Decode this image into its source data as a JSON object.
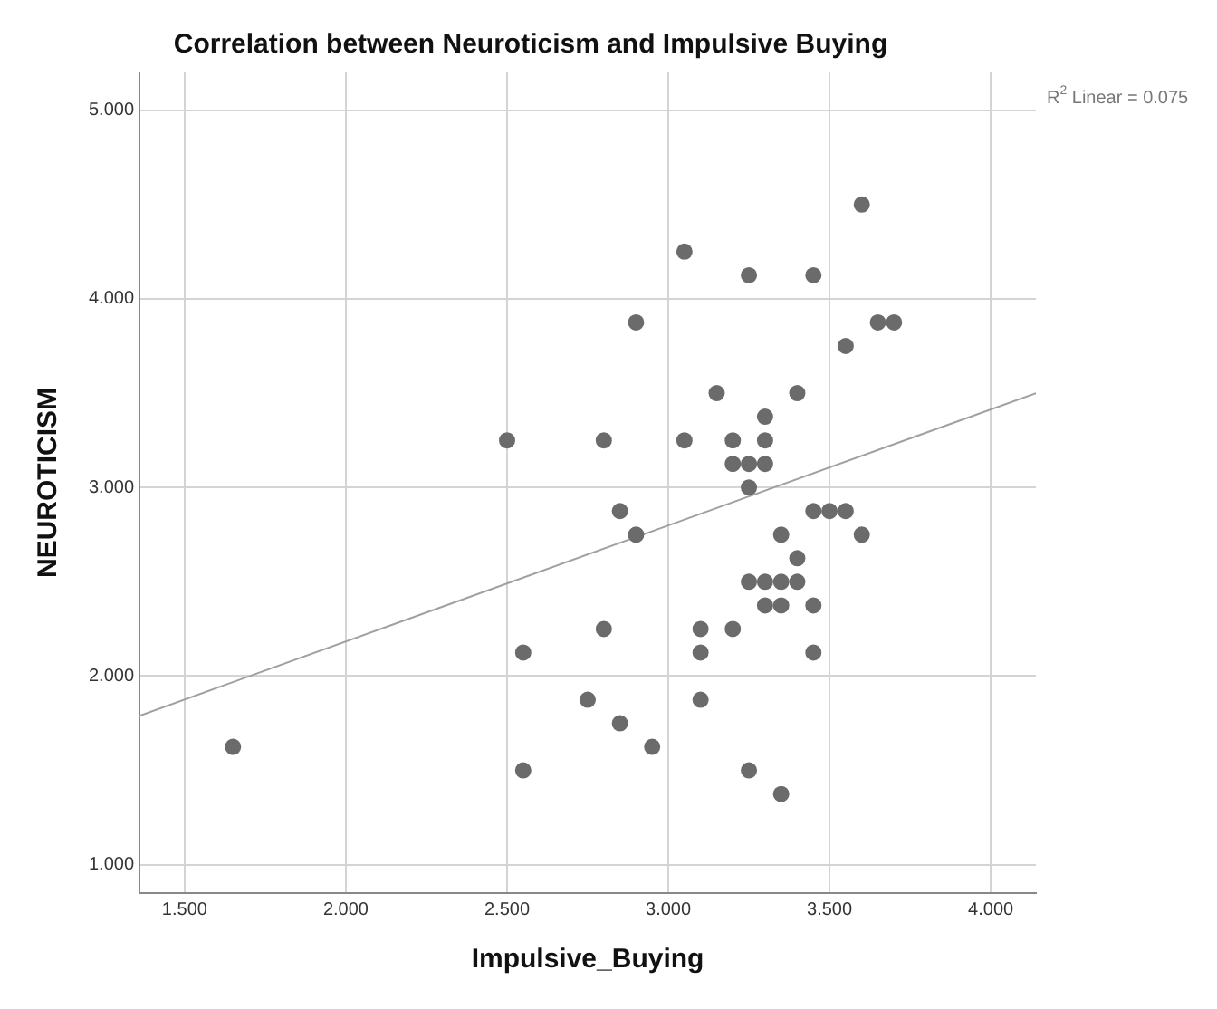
{
  "chart_data": {
    "type": "scatter",
    "title": "Correlation between Neuroticism and Impulsive Buying",
    "xlabel": "Impulsive_Buying",
    "ylabel": "NEUROTICISM",
    "annotations": [
      "R$^{2}$ Linear = 0.075"
    ],
    "series": [
      {
        "type": "scatter",
        "color": "#6b6b6b",
        "marker": "circle",
        "x": [
          1.65,
          2.5,
          2.55,
          2.55,
          2.75,
          2.8,
          2.8,
          2.85,
          2.85,
          2.9,
          2.9,
          2.95,
          3.05,
          3.05,
          3.1,
          3.1,
          3.1,
          3.15,
          3.2,
          3.2,
          3.2,
          3.25,
          3.25,
          3.25,
          3.25,
          3.25,
          3.3,
          3.3,
          3.3,
          3.3,
          3.3,
          3.35,
          3.35,
          3.35,
          3.35,
          3.4,
          3.4,
          3.4,
          3.45,
          3.45,
          3.45,
          3.45,
          3.5,
          3.55,
          3.55,
          3.6,
          3.6,
          3.65,
          3.7
        ],
        "values": [
          1.625,
          3.25,
          2.125,
          1.5,
          1.875,
          3.25,
          2.25,
          2.875,
          1.75,
          3.875,
          2.75,
          1.625,
          4.25,
          3.25,
          2.25,
          2.125,
          1.875,
          3.5,
          3.25,
          3.125,
          2.25,
          4.125,
          3.125,
          3.0,
          2.5,
          1.5,
          3.375,
          3.25,
          3.125,
          2.5,
          2.375,
          2.75,
          2.5,
          2.375,
          1.375,
          3.5,
          2.625,
          2.5,
          4.125,
          2.875,
          2.375,
          2.125,
          2.875,
          3.75,
          2.875,
          4.5,
          2.75,
          3.875,
          3.875
        ]
      },
      {
        "type": "line",
        "color": "#a0a0a0",
        "marker": "none",
        "line_style": "solid",
        "x": [
          1.36,
          4.14
        ],
        "values": [
          1.79,
          3.5
        ]
      }
    ],
    "xlim": [
      1.36,
      4.14
    ],
    "ylim": [
      0.85,
      5.2
    ],
    "xticks": [
      {
        "value": 1.5,
        "label": "1.500"
      },
      {
        "value": 2,
        "label": "2.000"
      },
      {
        "value": 2.5,
        "label": "2.500"
      },
      {
        "value": 3,
        "label": "3.000"
      },
      {
        "value": 3.5,
        "label": "3.500"
      },
      {
        "value": 4,
        "label": "4.000"
      }
    ],
    "yticks": [
      {
        "value": 1,
        "label": "1.000"
      },
      {
        "value": 2,
        "label": "2.000"
      },
      {
        "value": 3,
        "label": "3.000"
      },
      {
        "value": 4,
        "label": "4.000"
      },
      {
        "value": 5,
        "label": "5.000"
      }
    ],
    "grid": true,
    "legend": false
  }
}
